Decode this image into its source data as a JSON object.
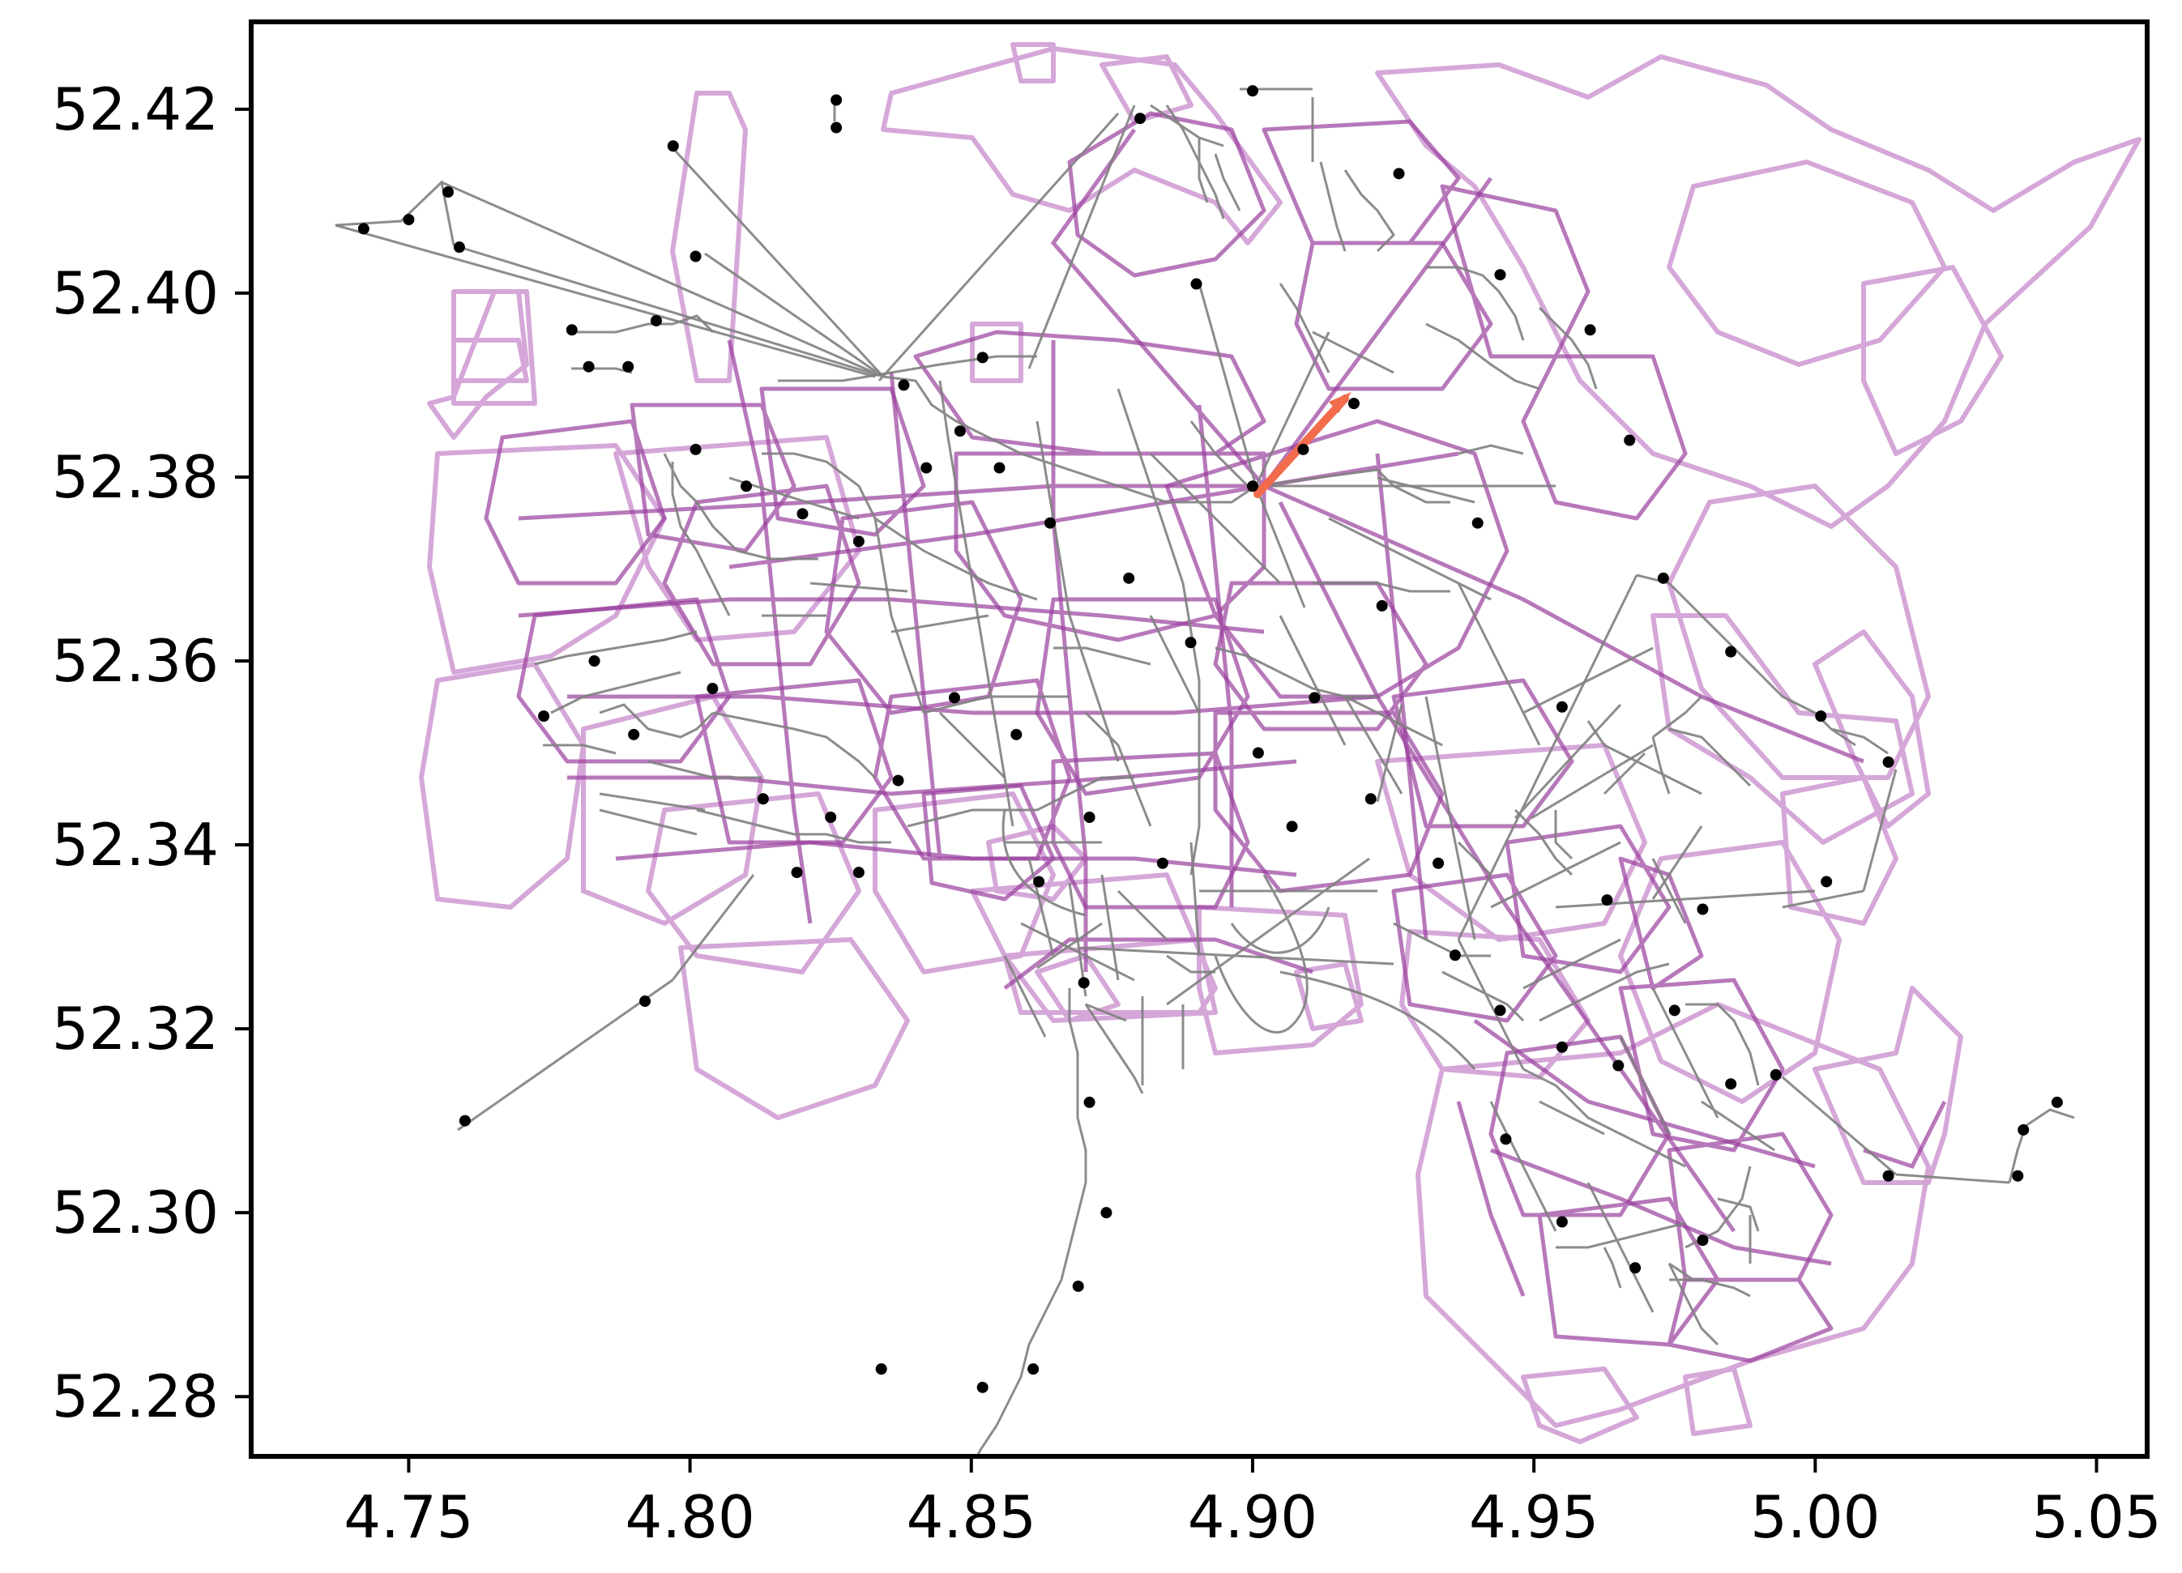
{
  "chart_data": {
    "type": "scatter",
    "title": "",
    "xlabel": "",
    "ylabel": "",
    "xlim": [
      4.722,
      5.059
    ],
    "ylim": [
      52.2735,
      52.4295
    ],
    "x_ticks": [
      "4.75",
      "4.80",
      "4.85",
      "4.90",
      "4.95",
      "5.00",
      "5.05"
    ],
    "x_tick_values": [
      4.75,
      4.8,
      4.85,
      4.9,
      4.95,
      5.0,
      5.05
    ],
    "y_ticks": [
      "52.28",
      "52.30",
      "52.32",
      "52.34",
      "52.36",
      "52.38",
      "52.40",
      "52.42"
    ],
    "y_tick_values": [
      52.28,
      52.3,
      52.32,
      52.34,
      52.36,
      52.38,
      52.4,
      52.42
    ],
    "grid": false,
    "colors": {
      "district_boundaries": "#c079c4",
      "district_boundaries_dark": "#9a3f9e",
      "stops": "#000000",
      "edges": "#808080",
      "highlight_edge": "#f26b4b",
      "axes": "#000000"
    },
    "series": [
      {
        "values": [
          [
            4.742,
            52.407
          ],
          [
            4.75,
            52.408
          ],
          [
            4.757,
            52.411
          ],
          [
            4.759,
            52.405
          ],
          [
            4.797,
            52.416
          ],
          [
            4.801,
            52.404
          ],
          [
            4.826,
            52.421
          ],
          [
            4.826,
            52.418
          ],
          [
            4.779,
            52.396
          ],
          [
            4.782,
            52.392
          ],
          [
            4.789,
            52.392
          ],
          [
            4.794,
            52.397
          ],
          [
            4.838,
            52.39
          ],
          [
            4.852,
            52.393
          ],
          [
            4.848,
            52.385
          ],
          [
            4.842,
            52.381
          ],
          [
            4.801,
            52.383
          ],
          [
            4.81,
            52.379
          ],
          [
            4.82,
            52.376
          ],
          [
            4.83,
            52.373
          ],
          [
            4.774,
            52.354
          ],
          [
            4.783,
            52.36
          ],
          [
            4.79,
            52.352
          ],
          [
            4.804,
            52.357
          ],
          [
            4.813,
            52.345
          ],
          [
            4.825,
            52.343
          ],
          [
            4.83,
            52.337
          ],
          [
            4.837,
            52.347
          ],
          [
            4.847,
            52.356
          ],
          [
            4.858,
            52.352
          ],
          [
            4.871,
            52.343
          ],
          [
            4.884,
            52.338
          ],
          [
            4.862,
            52.336
          ],
          [
            4.87,
            52.325
          ],
          [
            4.871,
            52.312
          ],
          [
            4.874,
            52.3
          ],
          [
            4.869,
            52.292
          ],
          [
            4.861,
            52.283
          ],
          [
            4.852,
            52.281
          ],
          [
            4.834,
            52.283
          ],
          [
            4.76,
            52.31
          ],
          [
            4.792,
            52.323
          ],
          [
            4.819,
            52.337
          ],
          [
            4.88,
            52.419
          ],
          [
            4.9,
            52.422
          ],
          [
            4.89,
            52.401
          ],
          [
            4.9,
            52.379
          ],
          [
            4.909,
            52.383
          ],
          [
            4.918,
            52.388
          ],
          [
            4.926,
            52.413
          ],
          [
            4.944,
            52.402
          ],
          [
            4.96,
            52.396
          ],
          [
            4.967,
            52.384
          ],
          [
            4.973,
            52.369
          ],
          [
            4.985,
            52.361
          ],
          [
            5.001,
            52.354
          ],
          [
            5.013,
            52.349
          ],
          [
            5.002,
            52.336
          ],
          [
            4.98,
            52.333
          ],
          [
            4.963,
            52.334
          ],
          [
            4.955,
            52.355
          ],
          [
            4.94,
            52.375
          ],
          [
            4.923,
            52.366
          ],
          [
            4.911,
            52.356
          ],
          [
            4.901,
            52.35
          ],
          [
            4.889,
            52.362
          ],
          [
            4.878,
            52.369
          ],
          [
            4.864,
            52.375
          ],
          [
            4.855,
            52.381
          ],
          [
            4.936,
            52.328
          ],
          [
            4.944,
            52.322
          ],
          [
            4.955,
            52.318
          ],
          [
            4.965,
            52.316
          ],
          [
            4.975,
            52.322
          ],
          [
            4.985,
            52.314
          ],
          [
            4.993,
            52.315
          ],
          [
            5.013,
            52.304
          ],
          [
            5.036,
            52.304
          ],
          [
            5.037,
            52.309
          ],
          [
            5.043,
            52.312
          ],
          [
            4.98,
            52.297
          ],
          [
            4.968,
            52.294
          ],
          [
            4.955,
            52.299
          ],
          [
            4.945,
            52.308
          ],
          [
            4.933,
            52.338
          ],
          [
            4.921,
            52.345
          ],
          [
            4.907,
            52.342
          ]
        ]
      }
    ]
  }
}
